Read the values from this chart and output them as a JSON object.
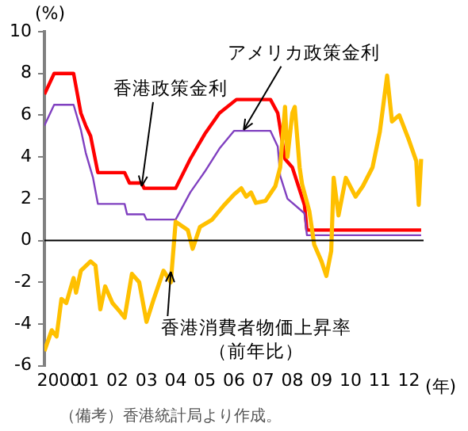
{
  "chart_data": {
    "type": "line",
    "ylabel": "(%)",
    "xlabel": "(年)",
    "xlim": [
      "2000-01",
      "2013-01"
    ],
    "xticks": [
      {
        "value": "2000-07",
        "label": "2000"
      },
      {
        "value": "2001-07",
        "label": "01"
      },
      {
        "value": "2002-07",
        "label": "02"
      },
      {
        "value": "2003-07",
        "label": "03"
      },
      {
        "value": "2004-07",
        "label": "04"
      },
      {
        "value": "2005-07",
        "label": "05"
      },
      {
        "value": "2006-07",
        "label": "06"
      },
      {
        "value": "2007-07",
        "label": "07"
      },
      {
        "value": "2008-07",
        "label": "08"
      },
      {
        "value": "2009-07",
        "label": "09"
      },
      {
        "value": "2010-07",
        "label": "10"
      },
      {
        "value": "2011-07",
        "label": "11"
      },
      {
        "value": "2012-07",
        "label": "12"
      }
    ],
    "ylim": [
      -6,
      10
    ],
    "yticks": [
      -6,
      -4,
      -2,
      0,
      2,
      4,
      6,
      8,
      10
    ],
    "grid": false,
    "legend": false,
    "marker": "none",
    "line_style": "solid",
    "series": [
      {
        "color": "#ff0000",
        "x": [
          "2000-01",
          "2000-05",
          "2001-01",
          "2001-04",
          "2001-06",
          "2001-08",
          "2001-11",
          "2002-10",
          "2002-12",
          "2003-05",
          "2003-06",
          "2004-07",
          "2005-01",
          "2005-07",
          "2006-01",
          "2006-08",
          "2007-10",
          "2008-01",
          "2008-04",
          "2008-07",
          "2008-12",
          "2009-01",
          "2012-12"
        ],
        "values": [
          7.0,
          8.0,
          8.0,
          6.1,
          5.5,
          5.0,
          3.25,
          3.25,
          2.75,
          2.75,
          2.5,
          2.5,
          3.9,
          5.1,
          6.1,
          6.75,
          6.75,
          6.1,
          3.9,
          3.5,
          1.7,
          0.5,
          0.5
        ]
      },
      {
        "color": "#8040c0",
        "x": [
          "2000-01",
          "2000-05",
          "2001-01",
          "2001-04",
          "2001-06",
          "2001-09",
          "2001-11",
          "2002-10",
          "2002-11",
          "2003-06",
          "2003-07",
          "2004-07",
          "2005-01",
          "2005-07",
          "2006-01",
          "2006-07",
          "2007-10",
          "2008-01",
          "2008-02",
          "2008-05",
          "2008-12",
          "2009-01",
          "2012-12"
        ],
        "values": [
          5.5,
          6.5,
          6.5,
          5.3,
          4.2,
          3.0,
          1.75,
          1.75,
          1.25,
          1.25,
          1.0,
          1.0,
          2.3,
          3.3,
          4.4,
          5.25,
          5.25,
          4.5,
          3.1,
          2.0,
          1.3,
          0.25,
          0.25
        ]
      },
      {
        "color": "#ffc000",
        "x": [
          "2000-01",
          "2000-04",
          "2000-06",
          "2000-08",
          "2000-10",
          "2001-01",
          "2001-02",
          "2001-04",
          "2001-08",
          "2001-10",
          "2001-12",
          "2002-02",
          "2002-05",
          "2002-08",
          "2002-10",
          "2003-01",
          "2003-04",
          "2003-07",
          "2003-10",
          "2004-02",
          "2004-05",
          "2004-07",
          "2004-12",
          "2005-02",
          "2005-05",
          "2005-10",
          "2006-03",
          "2006-07",
          "2006-10",
          "2006-12",
          "2007-02",
          "2007-04",
          "2007-08",
          "2007-12",
          "2008-02",
          "2008-04",
          "2008-05",
          "2008-07",
          "2008-08",
          "2008-10",
          "2008-11",
          "2009-02",
          "2009-04",
          "2009-07",
          "2009-09",
          "2009-11",
          "2009-12",
          "2010-02",
          "2010-05",
          "2010-09",
          "2010-12",
          "2011-04",
          "2011-07",
          "2011-10",
          "2011-12",
          "2012-03",
          "2012-07",
          "2012-10",
          "2012-11",
          "2012-12"
        ],
        "values": [
          -5.3,
          -4.3,
          -4.6,
          -2.8,
          -3.0,
          -1.8,
          -2.5,
          -1.45,
          -1.0,
          -1.2,
          -3.3,
          -2.2,
          -3.0,
          -3.4,
          -3.7,
          -1.6,
          -2.0,
          -3.9,
          -2.8,
          -1.45,
          -2.0,
          0.9,
          0.5,
          -0.4,
          0.65,
          1.0,
          1.7,
          2.2,
          2.5,
          2.1,
          2.3,
          1.8,
          1.9,
          2.6,
          3.5,
          6.4,
          4.0,
          6.1,
          6.4,
          3.5,
          2.7,
          1.4,
          -0.2,
          -1.0,
          -1.7,
          -0.5,
          3.0,
          1.2,
          3.0,
          2.1,
          2.6,
          3.5,
          5.2,
          7.9,
          5.7,
          6.0,
          4.8,
          3.8,
          1.7,
          3.9
        ]
      }
    ],
    "ref_lines": [
      {
        "axis": "y",
        "value": 0,
        "color": "#000000"
      }
    ],
    "annotations": [
      {
        "text": "香港政策金利",
        "x": "2003-05",
        "y": 2.6
      },
      {
        "text": "アメリカ政策金利",
        "x": "2006-11",
        "y": 5.3
      },
      {
        "text": "香港消費者物価上昇率（前年比）",
        "x": "2004-05",
        "y": -1.5
      },
      "（備考）香港統計局より作成。"
    ]
  }
}
